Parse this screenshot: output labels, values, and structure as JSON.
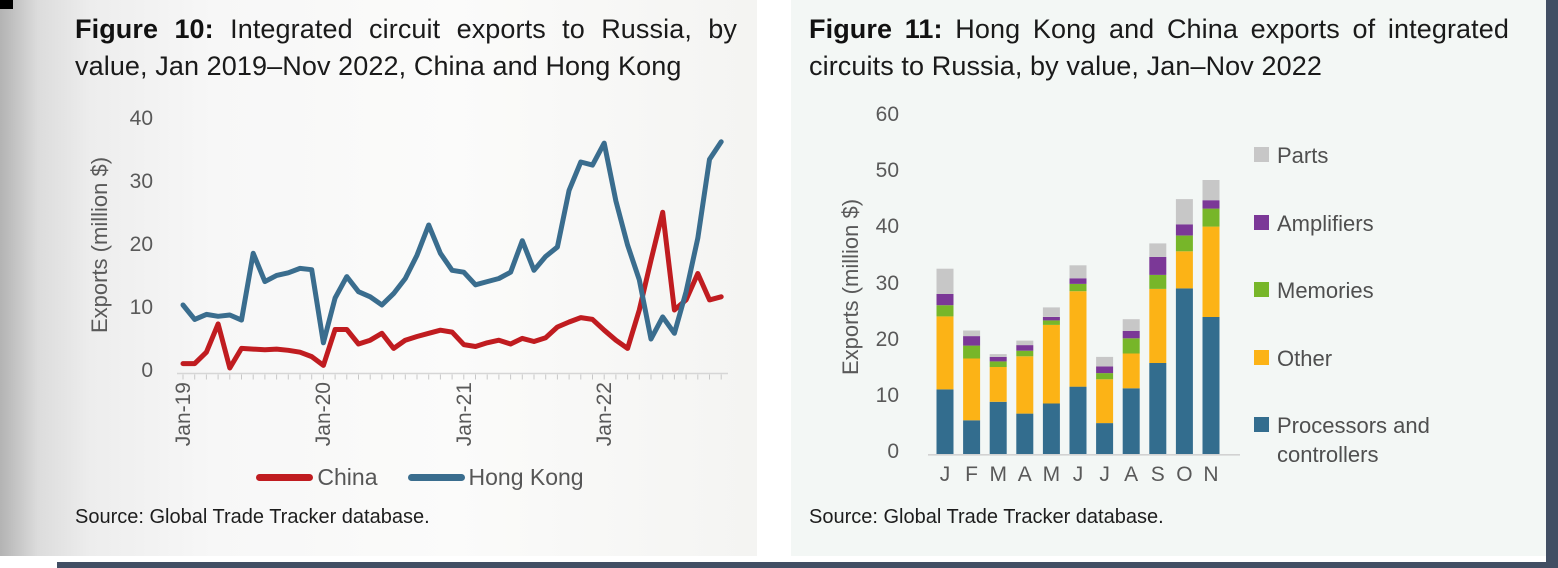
{
  "page": {
    "background": "#ffffff",
    "accent_strip_color": "#414e63",
    "corner_mark_color": "#000000"
  },
  "figure10": {
    "title_label": "Figure 10:",
    "title_text": "Integrated circuit exports to Russia, by value, Jan 2019–Nov 2022, China and Hong Kong",
    "y_axis_label": "Exports (million $)",
    "y_ticks": [
      40,
      30,
      20,
      10,
      0
    ],
    "x_tick_labels": [
      "Jan-19",
      "Jan-20",
      "Jan-21",
      "Jan-22"
    ],
    "legend": [
      {
        "label": "China",
        "color": "#c01c20"
      },
      {
        "label": "Hong Kong",
        "color": "#3a6d8e"
      }
    ],
    "source": "Source: Global Trade Tracker database.",
    "chart_data": {
      "type": "line",
      "x_unit": "month",
      "x_start": "Jan-2019",
      "x_end": "Nov-2022",
      "ylabel": "Exports (million $)",
      "ylim": [
        0,
        40
      ],
      "grid": false,
      "legend_position": "bottom",
      "series": [
        {
          "name": "China",
          "color": "#c01c20",
          "values": [
            1.5,
            1.5,
            3.3,
            7.8,
            0.8,
            3.9,
            3.8,
            3.7,
            3.8,
            3.6,
            3.3,
            2.6,
            1.2,
            6.9,
            6.9,
            4.6,
            5.2,
            6.3,
            3.9,
            5.2,
            5.8,
            6.3,
            6.8,
            6.5,
            4.5,
            4.2,
            4.8,
            5.2,
            4.6,
            5.5,
            5.0,
            5.6,
            7.3,
            8.1,
            8.8,
            8.5,
            6.8,
            5.2,
            3.9,
            10.0,
            17.9,
            25.5,
            10.0,
            11.6,
            15.8,
            11.6,
            12.1
          ]
        },
        {
          "name": "Hong Kong",
          "color": "#3a6d8e",
          "values": [
            10.8,
            8.5,
            9.3,
            9.0,
            9.2,
            8.4,
            19.0,
            14.5,
            15.5,
            15.9,
            16.6,
            16.4,
            4.8,
            11.9,
            15.3,
            12.9,
            12.1,
            10.8,
            12.6,
            15.0,
            18.7,
            23.5,
            19.0,
            16.3,
            16.0,
            14.0,
            14.5,
            15.0,
            16.0,
            21.0,
            16.3,
            18.5,
            20.0,
            29.0,
            33.5,
            33.0,
            36.5,
            27.3,
            20.3,
            14.8,
            5.4,
            8.9,
            6.3,
            12.9,
            21.4,
            33.9,
            36.7
          ]
        }
      ]
    }
  },
  "figure11": {
    "title_label": "Figure 11:",
    "title_text": "Hong Kong and China exports of integrated circuits to Russia, by value, Jan–Nov 2022",
    "y_axis_label": "Exports (million $)",
    "y_ticks": [
      60,
      50,
      40,
      30,
      20,
      10,
      0
    ],
    "legend": [
      {
        "label": "Parts",
        "color": "#c7c7c7"
      },
      {
        "label": "Amplifiers",
        "color": "#7b3897"
      },
      {
        "label": "Memories",
        "color": "#77b629"
      },
      {
        "label": "Other",
        "color": "#fcb316"
      },
      {
        "label": "Processors and controllers",
        "color": "#336d8e"
      }
    ],
    "source": "Source: Global Trade Tracker database.",
    "chart_data": {
      "type": "bar",
      "stacked": true,
      "categories": [
        "J",
        "F",
        "M",
        "A",
        "M",
        "J",
        "J",
        "A",
        "S",
        "O",
        "N"
      ],
      "ylabel": "Exports (million $)",
      "ylim": [
        0,
        60
      ],
      "grid": false,
      "legend_position": "right",
      "series": [
        {
          "name": "Processors and controllers",
          "color": "#336d8e",
          "values": [
            11.5,
            6.0,
            9.3,
            7.2,
            9.0,
            12.0,
            5.5,
            11.7,
            16.2,
            29.5,
            24.4
          ]
        },
        {
          "name": "Other",
          "color": "#fcb316",
          "values": [
            13.0,
            11.0,
            6.2,
            10.2,
            14.0,
            17.0,
            7.8,
            6.2,
            13.2,
            6.6,
            16.1
          ]
        },
        {
          "name": "Memories",
          "color": "#77b629",
          "values": [
            2.0,
            2.3,
            1.0,
            1.0,
            0.8,
            1.3,
            1.1,
            2.7,
            2.5,
            2.8,
            3.2
          ]
        },
        {
          "name": "Amplifiers",
          "color": "#7b3897",
          "values": [
            2.0,
            1.7,
            0.8,
            1.0,
            0.6,
            1.0,
            1.2,
            1.3,
            3.2,
            2.0,
            1.5
          ]
        },
        {
          "name": "Parts",
          "color": "#c7c7c7",
          "values": [
            4.5,
            1.0,
            0.5,
            0.8,
            1.7,
            2.3,
            1.7,
            2.1,
            2.4,
            4.5,
            3.6
          ]
        }
      ]
    }
  }
}
